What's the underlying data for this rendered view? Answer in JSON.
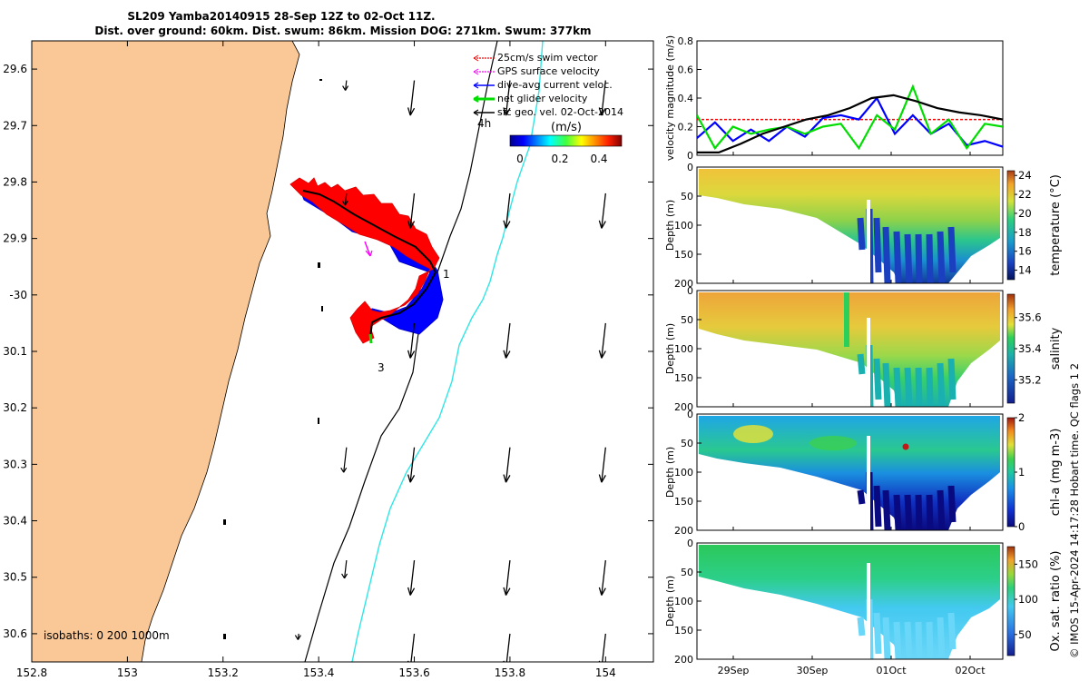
{
  "header": {
    "line1": "SL209 Yamba20140915 28-Sep 12Z to 02-Oct 11Z.",
    "line2": "Dist. over ground: 60km. Dist. swum: 86km. Mission DOG: 271km. Swum: 377km"
  },
  "credit": "© IMOS 15-Apr-2024 14:17:28 Hobart time. QC flags 1  2",
  "chart_data": [
    {
      "type": "scatter",
      "id": "map",
      "xlim": [
        152.8,
        154.1
      ],
      "ylim": [
        -30.65,
        -29.55
      ],
      "xticks": [
        152.8,
        153,
        153.2,
        153.4,
        153.6,
        153.8,
        154
      ],
      "xtick_labels": [
        "152.8",
        "153",
        "153.2",
        "153.4",
        "153.6",
        "153.8",
        "154"
      ],
      "yticks": [
        -29.6,
        -29.7,
        -29.8,
        -29.9,
        -30,
        -30.1,
        -30.2,
        -30.3,
        -30.4,
        -30.5,
        -30.6
      ],
      "ytick_labels": [
        "29.6",
        "29.7",
        "29.8",
        "29.9",
        "-30",
        "30.1",
        "30.2",
        "30.3",
        "30.4",
        "30.5",
        "30.6"
      ],
      "legend": [
        {
          "label": "25cm/s swim vector",
          "color": "#ff0000"
        },
        {
          "label": "GPS surface velocity",
          "color": "#ff00ff"
        },
        {
          "label": "dive-avg current veloc.",
          "color": "#0000ff"
        },
        {
          "label": "net glider velocity",
          "color": "#00dd00"
        },
        {
          "label": "sfc geo. vel. 02-Oct-2014",
          "color": "#000000"
        }
      ],
      "legend_position": "top-right",
      "colorbar": {
        "label": "(m/s)",
        "ticks": [
          "0",
          "0.2",
          "0.4"
        ],
        "range": [
          0,
          0.5
        ]
      },
      "annotations": [
        "4h",
        "1",
        "3"
      ],
      "isobath_label": "isobaths: 0   200  1000m",
      "current_vectors": {
        "lons": [
          153.6,
          153.8,
          154.0
        ],
        "lats": [
          -29.62,
          -29.82,
          -30.05,
          -30.27,
          -30.47,
          -30.6
        ],
        "u": -0.04,
        "v": -0.35
      }
    },
    {
      "type": "line",
      "id": "velocity",
      "ylabel": "velocity magnitude (m/s)",
      "ylim": [
        0,
        0.8
      ],
      "yticks": [
        "0",
        "0.2",
        "0.4",
        "0.6",
        "0.8"
      ],
      "series": [
        {
          "color": "#ff0000",
          "values": [
            0.25,
            0.25,
            0.25,
            0.25,
            0.25,
            0.25,
            0.25,
            0.25,
            0.25,
            0.25,
            0.25
          ]
        },
        {
          "color": "#0000ff",
          "values": [
            0.12,
            0.23,
            0.1,
            0.18,
            0.1,
            0.2,
            0.13,
            0.26,
            0.28,
            0.25,
            0.4,
            0.15,
            0.28,
            0.15,
            0.22,
            0.07,
            0.1,
            0.06
          ]
        },
        {
          "color": "#00dd00",
          "values": [
            0.28,
            0.05,
            0.2,
            0.15,
            0.18,
            0.2,
            0.15,
            0.2,
            0.22,
            0.05,
            0.28,
            0.18,
            0.48,
            0.15,
            0.25,
            0.05,
            0.22,
            0.2
          ]
        },
        {
          "color": "#000000",
          "values": [
            0.02,
            0.02,
            0.08,
            0.15,
            0.2,
            0.25,
            0.28,
            0.33,
            0.4,
            0.42,
            0.38,
            0.33,
            0.3,
            0.28,
            0.25
          ]
        }
      ]
    },
    {
      "type": "heatmap",
      "id": "temperature",
      "ylabel": "Depth (m)",
      "cbar_label": "temperature (°C)",
      "cbar_ticks": [
        "14",
        "16",
        "18",
        "20",
        "22",
        "24"
      ],
      "cbar_range": [
        13,
        24.5
      ],
      "yticks": [
        "0",
        "50",
        "100",
        "150",
        "200"
      ]
    },
    {
      "type": "heatmap",
      "id": "salinity",
      "ylabel": "Depth (m)",
      "cbar_label": "salinity",
      "cbar_ticks": [
        "35.2",
        "35.4",
        "35.6"
      ],
      "cbar_range": [
        35.05,
        35.75
      ],
      "yticks": [
        "0",
        "50",
        "100",
        "150",
        "200"
      ]
    },
    {
      "type": "heatmap",
      "id": "chla",
      "ylabel": "Depth (m)",
      "cbar_label": "chl-a (mg m-3)",
      "cbar_ticks": [
        "0",
        "1",
        "2"
      ],
      "cbar_range": [
        0,
        2
      ],
      "yticks": [
        "0",
        "50",
        "100",
        "150",
        "200"
      ]
    },
    {
      "type": "heatmap",
      "id": "oxygen",
      "ylabel": "Depth (m)",
      "cbar_label": "Ox. sat. ratio (%)",
      "cbar_ticks": [
        "50",
        "100",
        "150"
      ],
      "cbar_range": [
        20,
        175
      ],
      "yticks": [
        "0",
        "50",
        "100",
        "150",
        "200"
      ],
      "xtick_labels": [
        "29Sep",
        "30Sep",
        "01Oct",
        "02Oct"
      ]
    }
  ]
}
